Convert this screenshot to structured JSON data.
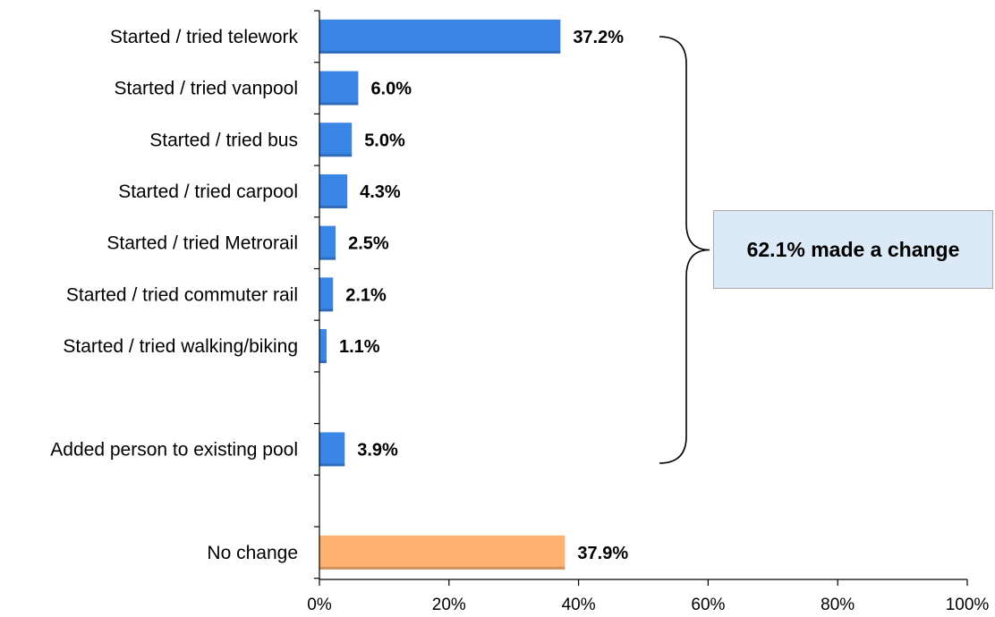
{
  "chart_data": {
    "type": "bar",
    "orientation": "horizontal",
    "title": "",
    "xlabel": "",
    "ylabel": "",
    "xlim": [
      0,
      100
    ],
    "grid": false,
    "x_ticks": [
      "0%",
      "20%",
      "40%",
      "60%",
      "80%",
      "100%"
    ],
    "bars": [
      {
        "label": "Started / tried telework",
        "value": 37.2,
        "value_label": "37.2%",
        "color": "#3a86e6",
        "slot": 0
      },
      {
        "label": "Started / tried vanpool",
        "value": 6.0,
        "value_label": "6.0%",
        "color": "#3a86e6",
        "slot": 1
      },
      {
        "label": "Started / tried bus",
        "value": 5.0,
        "value_label": "5.0%",
        "color": "#3a86e6",
        "slot": 2
      },
      {
        "label": "Started / tried carpool",
        "value": 4.3,
        "value_label": "4.3%",
        "color": "#3a86e6",
        "slot": 3
      },
      {
        "label": "Started / tried Metrorail",
        "value": 2.5,
        "value_label": "2.5%",
        "color": "#3a86e6",
        "slot": 4
      },
      {
        "label": "Started / tried commuter rail",
        "value": 2.1,
        "value_label": "2.1%",
        "color": "#3a86e6",
        "slot": 5
      },
      {
        "label": "Started / tried walking/biking",
        "value": 1.1,
        "value_label": "1.1%",
        "color": "#3a86e6",
        "slot": 6
      },
      {
        "label": "Added person to existing pool",
        "value": 3.9,
        "value_label": "3.9%",
        "color": "#3a86e6",
        "slot": 8
      },
      {
        "label": "No change",
        "value": 37.9,
        "value_label": "37.9%",
        "color": "#ffb171",
        "slot": 10
      }
    ],
    "annotation": {
      "text": "62.1% made a change",
      "spans": [
        "Started / tried telework",
        "Added person to existing pool"
      ],
      "background": "#dce9f7"
    }
  }
}
